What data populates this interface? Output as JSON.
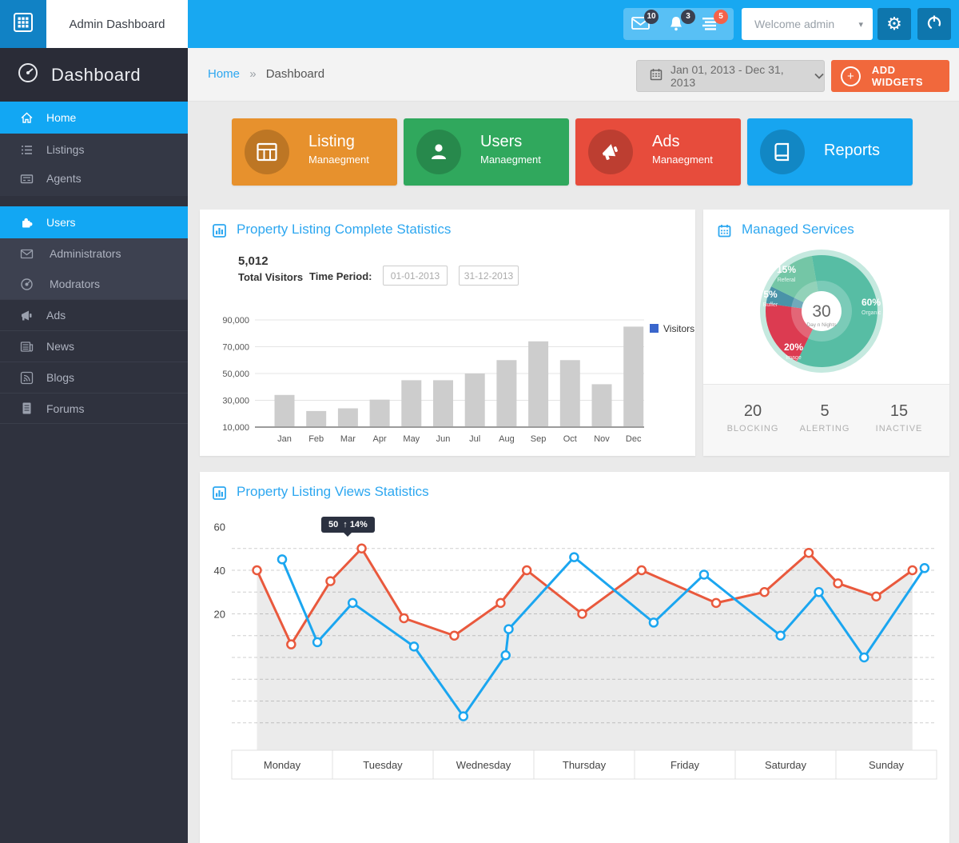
{
  "header": {
    "app_title": "Admin Dashboard",
    "welcome": "Welcome admin",
    "notifications": [
      {
        "icon": "mail-icon",
        "count": "10"
      },
      {
        "icon": "bell-icon",
        "count": "3"
      },
      {
        "icon": "messages-icon",
        "count": "5"
      }
    ]
  },
  "sidebar": {
    "title": "Dashboard",
    "items": [
      {
        "label": "Home",
        "icon": "home-icon",
        "active": true
      },
      {
        "label": "Listings",
        "icon": "list-icon"
      },
      {
        "label": "Agents",
        "icon": "id-card-icon"
      },
      {
        "label": "Users",
        "icon": "puzzle-icon",
        "active": true
      },
      {
        "label": "Administrators",
        "icon": "envelope-icon"
      },
      {
        "label": "Modrators",
        "icon": "compass-icon"
      },
      {
        "label": "Ads",
        "icon": "megaphone-icon"
      },
      {
        "label": "News",
        "icon": "newspaper-icon"
      },
      {
        "label": "Blogs",
        "icon": "rss-icon"
      },
      {
        "label": "Forums",
        "icon": "document-icon"
      }
    ]
  },
  "breadcrumb": {
    "home": "Home",
    "separator": "»",
    "current": "Dashboard"
  },
  "toolbar": {
    "date_range": "Jan 01, 2013 - Dec 31, 2013",
    "add_widgets_label": "ADD WIDGETS"
  },
  "cards": [
    {
      "title": "Listing",
      "subtitle": "Manaegment",
      "color": "#e7912d",
      "icon": "table-icon"
    },
    {
      "title": "Users",
      "subtitle": "Manaegment",
      "color": "#30a85d",
      "icon": "user-icon"
    },
    {
      "title": "Ads",
      "subtitle": "Manaegment",
      "color": "#e74c3c",
      "icon": "megaphone-icon"
    },
    {
      "title": "Reports",
      "subtitle": "",
      "color": "#17a5f0",
      "icon": "book-icon"
    }
  ],
  "visitors_panel": {
    "title": "Property Listing Complete Statistics",
    "total_value": "5,012",
    "total_label": "Total Visitors",
    "time_period_label": "Time Period:",
    "date_from": "01-01-2013",
    "date_to": "31-12-2013"
  },
  "services_panel": {
    "title": "Managed Services",
    "stats": [
      {
        "value": "20",
        "label": "BLOCKING"
      },
      {
        "value": "5",
        "label": "ALERTING"
      },
      {
        "value": "15",
        "label": "INACTIVE"
      }
    ]
  },
  "views_panel": {
    "title": "Property Listing Views Statistics",
    "tooltip_value": "50",
    "tooltip_arrow": "↑",
    "tooltip_change": "14%"
  },
  "colors": {
    "header_blue": "#18a8f1",
    "logo_blue": "#1182c5",
    "dark_button_blue": "#0e76ad",
    "sidebar_bg": "#2f323e",
    "active_blue": "#12a7f3",
    "accent_orange": "#f1683c",
    "panel_title_blue": "#2da7f0",
    "badge_dark": "#3a4050",
    "badge_red": "#f4624a"
  },
  "chart_data": [
    {
      "id": "visitors_bar",
      "type": "bar",
      "title": "Property Listing Complete Statistics",
      "categories": [
        "Jan",
        "Feb",
        "Mar",
        "Apr",
        "May",
        "Jun",
        "Jul",
        "Aug",
        "Sep",
        "Oct",
        "Nov",
        "Dec"
      ],
      "values": [
        34000,
        22000,
        24000,
        30500,
        45000,
        45000,
        50000,
        60000,
        74000,
        60000,
        42000,
        85000
      ],
      "ylim": [
        10000,
        90000
      ],
      "yticks": [
        {
          "v": 10000,
          "label": "10,000"
        },
        {
          "v": 30000,
          "label": "30,000"
        },
        {
          "v": 50000,
          "label": "50,000"
        },
        {
          "v": 70000,
          "label": "70,000"
        },
        {
          "v": 90000,
          "label": "90,000"
        }
      ],
      "legend": [
        {
          "label": "Visitors",
          "color": "#3a66cc"
        }
      ],
      "bar_color": "#cdcdcd",
      "grid": true,
      "legend_position": "right-top"
    },
    {
      "id": "managed_donut",
      "type": "pie",
      "title": "Managed Services",
      "start_angle": -10,
      "slices": [
        {
          "label": "Organic",
          "pct": 60,
          "color": "#57bda4",
          "label_pos": {
            "x": 198,
            "y": 120,
            "anchor": "start"
          }
        },
        {
          "label": "Image",
          "pct": 20,
          "color": "#dc3b51",
          "label_pos": {
            "x": 113,
            "y": 176,
            "anchor": "middle"
          }
        },
        {
          "label": "Buffer",
          "pct": 5,
          "color": "#4a93a8",
          "label_pos": {
            "x": 84,
            "y": 110,
            "anchor": "middle"
          }
        },
        {
          "label": "Referal",
          "pct": 15,
          "color": "#74c6a6",
          "label_pos": {
            "x": 104,
            "y": 79,
            "anchor": "middle"
          }
        }
      ],
      "ring_color": "#c5e9df",
      "center": {
        "value": "30",
        "label": "Day n Nights"
      }
    },
    {
      "id": "views_line",
      "type": "line",
      "title": "Property Listing Views Statistics",
      "x_categories": [
        "Monday",
        "Tuesday",
        "Wednesday",
        "Thursday",
        "Friday",
        "Saturday",
        "Sunday"
      ],
      "yticks": [
        {
          "v": 60,
          "label": "60"
        },
        {
          "v": 40,
          "label": "40"
        },
        {
          "v": 20,
          "label": "20"
        }
      ],
      "gridlines_v": [
        50,
        40,
        30,
        20,
        10,
        0,
        -10,
        -20,
        -30
      ],
      "series": [
        {
          "name": "listing-views-red",
          "color": "#e9593d",
          "fill": "rgba(0,0,0,0.08)",
          "points": [
            [
              0.25,
              40
            ],
            [
              0.59,
              6
            ],
            [
              0.98,
              35
            ],
            [
              1.29,
              50
            ],
            [
              1.71,
              18
            ],
            [
              2.21,
              10
            ],
            [
              2.67,
              25
            ],
            [
              2.93,
              40
            ],
            [
              3.48,
              20
            ],
            [
              4.07,
              40
            ],
            [
              4.81,
              25
            ],
            [
              5.29,
              30
            ],
            [
              5.73,
              48
            ],
            [
              6.02,
              34
            ],
            [
              6.4,
              28
            ],
            [
              6.76,
              40
            ]
          ]
        },
        {
          "name": "listing-views-blue",
          "color": "#1ba6f0",
          "points": [
            [
              0.5,
              45
            ],
            [
              0.85,
              7
            ],
            [
              1.2,
              25
            ],
            [
              1.81,
              5
            ],
            [
              2.3,
              -27
            ],
            [
              2.72,
              1
            ],
            [
              2.75,
              13
            ],
            [
              3.4,
              46
            ],
            [
              4.19,
              16
            ],
            [
              4.69,
              38
            ],
            [
              5.45,
              10
            ],
            [
              5.83,
              30
            ],
            [
              6.28,
              0
            ],
            [
              6.88,
              41
            ]
          ]
        }
      ],
      "tooltip": {
        "value": "50",
        "direction": "up",
        "change": "14%"
      }
    }
  ]
}
